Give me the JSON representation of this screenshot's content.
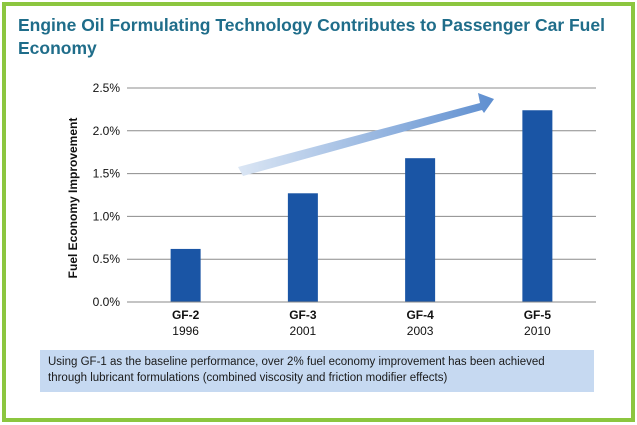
{
  "chart_data": {
    "type": "bar",
    "title": "Engine Oil Formulating Technology Contributes to Passenger Car Fuel Economy",
    "ylabel": "Fuel Economy Improvement",
    "xlabel": "",
    "categories": [
      "GF-2",
      "GF-3",
      "GF-4",
      "GF-5"
    ],
    "years": [
      "1996",
      "2001",
      "2003",
      "2010"
    ],
    "values": [
      0.62,
      1.27,
      1.68,
      2.24
    ],
    "ylim": [
      0,
      2.5
    ],
    "yticks": [
      "0.0%",
      "0.5%",
      "1.0%",
      "1.5%",
      "2.0%",
      "2.5%"
    ],
    "grid": true,
    "bar_color": "#1a55a5",
    "annotation": "upward trend arrow"
  },
  "note": "Using GF-1 as the baseline performance, over 2% fuel economy improvement has been achieved through lubricant formulations (combined viscosity and friction modifier effects)",
  "colors": {
    "border": "#8cc63f",
    "title": "#1f6d8a",
    "note_bg": "#c6d9f1",
    "arrow": "#8fb0dd"
  }
}
